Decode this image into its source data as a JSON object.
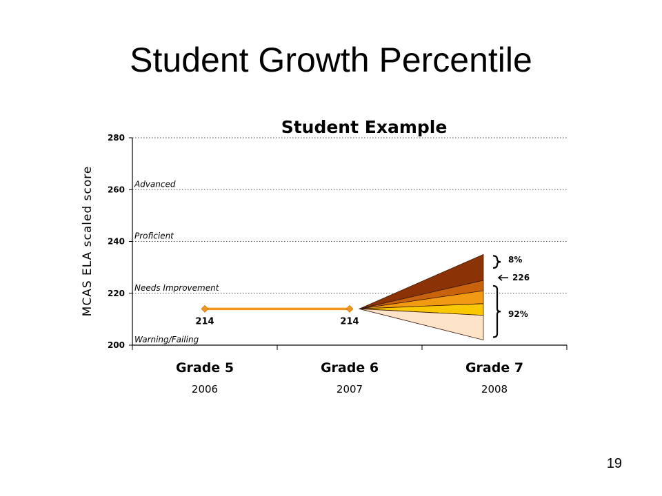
{
  "slide": {
    "title": "Student Growth Percentile",
    "page_number": "19"
  },
  "chart_data": {
    "type": "line",
    "title": "Student Example",
    "ylabel": "MCAS ELA scaled score",
    "ylim": [
      200,
      280
    ],
    "yticks": [
      200,
      220,
      240,
      260,
      280
    ],
    "grid": true,
    "categories": [
      {
        "grade": "Grade 5",
        "year": "2006"
      },
      {
        "grade": "Grade 6",
        "year": "2007"
      },
      {
        "grade": "Grade 7",
        "year": "2008"
      }
    ],
    "bands": [
      {
        "label": "Advanced",
        "min": 260
      },
      {
        "label": "Proficient",
        "min": 240
      },
      {
        "label": "Needs Improvement",
        "min": 220
      },
      {
        "label": "Warning/Failing",
        "min": 200
      }
    ],
    "series": [
      {
        "color": "#f0961e",
        "points": [
          {
            "x": "Grade 5",
            "y": 214
          },
          {
            "x": "Grade 6",
            "y": 214
          }
        ]
      }
    ],
    "projection_fan": {
      "from": {
        "x": "Grade 6",
        "y": 214
      },
      "to": "Grade 7",
      "boundaries": [
        235,
        225,
        221,
        216,
        211.5,
        202
      ],
      "colors": [
        "#8b3306",
        "#c9620c",
        "#f19a12",
        "#fac800",
        "#fde3c8"
      ]
    },
    "annotations": [
      {
        "text": "8%",
        "y": 233
      },
      {
        "text": "226",
        "y": 226
      },
      {
        "text": "92%",
        "y": 212
      }
    ]
  }
}
